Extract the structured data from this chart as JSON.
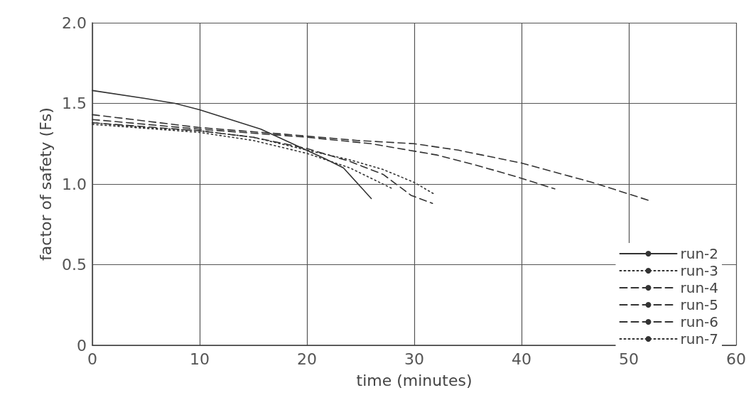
{
  "chart_data": {
    "type": "line",
    "xlabel": "time (minutes)",
    "ylabel": "factor of safety (Fs)",
    "xlim": [
      0,
      60
    ],
    "xticks": [
      0,
      10,
      20,
      30,
      40,
      50,
      60
    ],
    "ylim": [
      0,
      2
    ],
    "yticks": [
      0,
      0.5,
      {
        "value": 1,
        "label": "1.0"
      },
      {
        "value": 1.5,
        "label": "1.5"
      },
      {
        "value": 2,
        "label": "2.0"
      }
    ],
    "grid": true,
    "legend": "bottom right",
    "marker": "none",
    "series": [
      {
        "name": "run-2",
        "color": "#333333",
        "line_style": "solid",
        "x": [
          0,
          5,
          7.7,
          10,
          15.7,
          21.6,
          23.4,
          26
        ],
        "values": [
          1.58,
          1.53,
          1.5,
          1.46,
          1.34,
          1.16,
          1.1,
          0.91
        ]
      },
      {
        "name": "run-3",
        "color": "#333333",
        "line_style": "dotted",
        "x": [
          0,
          5,
          10,
          15,
          20,
          24,
          27.1,
          30,
          31.8
        ],
        "values": [
          1.38,
          1.35,
          1.33,
          1.29,
          1.21,
          1.15,
          1.09,
          1.01,
          0.94
        ]
      },
      {
        "name": "run-4",
        "color": "#333333",
        "line_style": "dashed",
        "x": [
          0,
          10,
          20,
          26,
          32.1,
          35.6,
          39.3,
          43.1
        ],
        "values": [
          1.4,
          1.34,
          1.29,
          1.25,
          1.18,
          1.12,
          1.05,
          0.97
        ]
      },
      {
        "name": "run-5",
        "color": "#333333",
        "line_style": "dashed",
        "x": [
          0,
          10,
          17.7,
          24.7,
          30,
          34.1,
          40,
          46.6,
          51.8
        ],
        "values": [
          1.43,
          1.35,
          1.31,
          1.27,
          1.25,
          1.21,
          1.13,
          1.01,
          0.9
        ]
      },
      {
        "name": "run-6",
        "color": "#333333",
        "line_style": "dashed",
        "x": [
          0,
          10,
          15,
          20,
          24,
          27.1,
          29.7,
          31.7
        ],
        "values": [
          1.38,
          1.33,
          1.29,
          1.22,
          1.14,
          1.06,
          0.93,
          0.88
        ]
      },
      {
        "name": "run-7",
        "color": "#333333",
        "line_style": "dotted",
        "x": [
          0,
          10,
          15,
          20,
          24,
          28
        ],
        "values": [
          1.37,
          1.32,
          1.27,
          1.19,
          1.1,
          0.97
        ]
      }
    ]
  }
}
